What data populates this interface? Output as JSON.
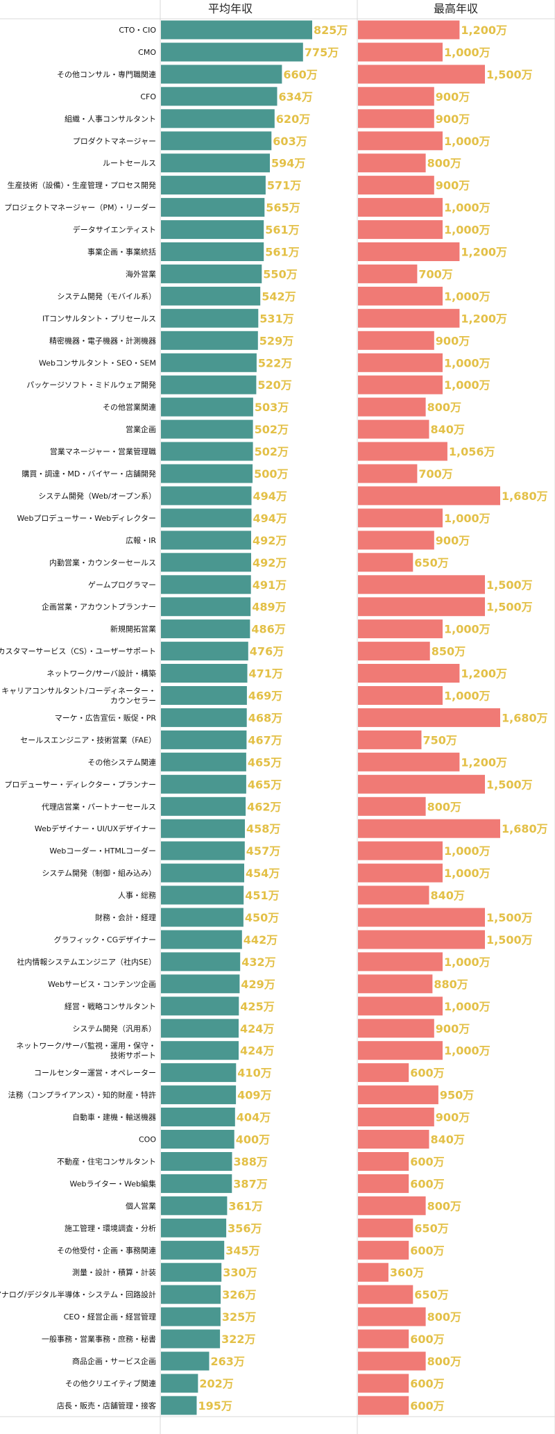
{
  "chart_data": {
    "type": "bar",
    "orientation": "horizontal",
    "unit": "万",
    "colors": {
      "average": "#4a9790",
      "max": "#f07a75",
      "value_label": "#e3c047",
      "grid": "#d9d9d9"
    },
    "series": [
      {
        "name": "平均年収",
        "values": [
          825,
          775,
          660,
          634,
          620,
          603,
          594,
          571,
          565,
          561,
          561,
          550,
          542,
          531,
          529,
          522,
          520,
          503,
          502,
          502,
          500,
          494,
          494,
          492,
          492,
          491,
          489,
          486,
          476,
          471,
          469,
          468,
          467,
          465,
          465,
          462,
          458,
          457,
          454,
          451,
          450,
          442,
          432,
          429,
          425,
          424,
          424,
          410,
          409,
          404,
          400,
          388,
          387,
          361,
          356,
          345,
          330,
          326,
          325,
          322,
          263,
          202,
          195
        ]
      },
      {
        "name": "最高年収",
        "values": [
          1200,
          1000,
          1500,
          900,
          900,
          1000,
          800,
          900,
          1000,
          1000,
          1200,
          700,
          1000,
          1200,
          900,
          1000,
          1000,
          800,
          840,
          1056,
          700,
          1680,
          1000,
          900,
          650,
          1500,
          1500,
          1000,
          850,
          1200,
          1000,
          1680,
          750,
          1200,
          1500,
          800,
          1680,
          1000,
          1000,
          840,
          1500,
          1500,
          1000,
          880,
          1000,
          900,
          1000,
          600,
          950,
          900,
          840,
          600,
          600,
          800,
          650,
          600,
          360,
          650,
          800,
          600,
          800,
          600,
          600
        ]
      }
    ],
    "value_labels": {
      "average": [
        "825万",
        "775万",
        "660万",
        "634万",
        "620万",
        "603万",
        "594万",
        "571万",
        "565万",
        "561万",
        "561万",
        "550万",
        "542万",
        "531万",
        "529万",
        "522万",
        "520万",
        "503万",
        "502万",
        "502万",
        "500万",
        "494万",
        "494万",
        "492万",
        "492万",
        "491万",
        "489万",
        "486万",
        "476万",
        "471万",
        "469万",
        "468万",
        "467万",
        "465万",
        "465万",
        "462万",
        "458万",
        "457万",
        "454万",
        "451万",
        "450万",
        "442万",
        "432万",
        "429万",
        "425万",
        "424万",
        "424万",
        "410万",
        "409万",
        "404万",
        "400万",
        "388万",
        "387万",
        "361万",
        "356万",
        "345万",
        "330万",
        "326万",
        "325万",
        "322万",
        "263万",
        "202万",
        "195万"
      ],
      "max": [
        "1,200万",
        "1,000万",
        "1,500万",
        "900万",
        "900万",
        "1,000万",
        "800万",
        "900万",
        "1,000万",
        "1,000万",
        "1,200万",
        "700万",
        "1,000万",
        "1,200万",
        "900万",
        "1,000万",
        "1,000万",
        "800万",
        "840万",
        "1,056万",
        "700万",
        "1,680万",
        "1,000万",
        "900万",
        "650万",
        "1,500万",
        "1,500万",
        "1,000万",
        "850万",
        "1,200万",
        "1,000万",
        "1,680万",
        "750万",
        "1,200万",
        "1,500万",
        "800万",
        "1,680万",
        "1,000万",
        "1,000万",
        "840万",
        "1,500万",
        "1,500万",
        "1,000万",
        "880万",
        "1,000万",
        "900万",
        "1,000万",
        "600万",
        "950万",
        "900万",
        "840万",
        "600万",
        "600万",
        "800万",
        "650万",
        "600万",
        "360万",
        "650万",
        "800万",
        "600万",
        "800万",
        "600万",
        "600万"
      ]
    },
    "categories": [
      [
        "CTO・CIO"
      ],
      [
        "CMO"
      ],
      [
        "その他コンサル・専門職関連"
      ],
      [
        "CFO"
      ],
      [
        "組織・人事コンサルタント"
      ],
      [
        "プロダクトマネージャー"
      ],
      [
        "ルートセールス"
      ],
      [
        "生産技術（設備）・生産管理・プロセス開発"
      ],
      [
        "プロジェクトマネージャー（PM）・リーダー"
      ],
      [
        "データサイエンティスト"
      ],
      [
        "事業企画・事業統括"
      ],
      [
        "海外営業"
      ],
      [
        "システム開発（モバイル系）"
      ],
      [
        "ITコンサルタント・プリセールス"
      ],
      [
        "精密機器・電子機器・計測機器"
      ],
      [
        "Webコンサルタント・SEO・SEM"
      ],
      [
        "パッケージソフト・ミドルウェア開発"
      ],
      [
        "その他営業関連"
      ],
      [
        "営業企画"
      ],
      [
        "営業マネージャー・営業管理職"
      ],
      [
        "購買・調達・MD・バイヤー・店舗開発"
      ],
      [
        "システム開発（Web/オープン系）"
      ],
      [
        "Webプロデューサー・Webディレクター"
      ],
      [
        "広報・IR"
      ],
      [
        "内勤営業・カウンターセールス"
      ],
      [
        "ゲームプログラマー"
      ],
      [
        "企画営業・アカウントプランナー"
      ],
      [
        "新規開拓営業"
      ],
      [
        "カスタマーサービス（CS）・ユーザーサポート"
      ],
      [
        "ネットワーク/サーバ設計・構築"
      ],
      [
        "キャリアコンサルタント/コーディネーター・",
        "カウンセラー"
      ],
      [
        "マーケ・広告宣伝・販促・PR"
      ],
      [
        "セールスエンジニア・技術営業（FAE）"
      ],
      [
        "その他システム関連"
      ],
      [
        "プロデューサー・ディレクター・プランナー"
      ],
      [
        "代理店営業・パートナーセールス"
      ],
      [
        "Webデザイナー・UI/UXデザイナー"
      ],
      [
        "Webコーダー・HTMLコーダー"
      ],
      [
        "システム開発（制御・組み込み）"
      ],
      [
        "人事・総務"
      ],
      [
        "財務・会計・経理"
      ],
      [
        "グラフィック・CGデザイナー"
      ],
      [
        "社内情報システムエンジニア（社内SE）"
      ],
      [
        "Webサービス・コンテンツ企画"
      ],
      [
        "経営・戦略コンサルタント"
      ],
      [
        "システム開発（汎用系）"
      ],
      [
        "ネットワーク/サーバ監視・運用・保守・",
        "技術サポート"
      ],
      [
        "コールセンター運営・オペレーター"
      ],
      [
        "法務（コンプライアンス）・知的財産・特許"
      ],
      [
        "自動車・建機・輸送機器"
      ],
      [
        "COO"
      ],
      [
        "不動産・住宅コンサルタント"
      ],
      [
        "Webライター・Web編集"
      ],
      [
        "個人営業"
      ],
      [
        "施工管理・環境調査・分析"
      ],
      [
        "その他受付・企画・事務関連"
      ],
      [
        "測量・設計・積算・計装"
      ],
      [
        "アナログ/デジタル半導体・システム・回路設計"
      ],
      [
        "CEO・経営企画・経営管理"
      ],
      [
        "一般事務・営業事務・庶務・秘書"
      ],
      [
        "商品企画・サービス企画"
      ],
      [
        "その他クリエイティブ関連"
      ],
      [
        "店長・販売・店舗管理・接客"
      ]
    ]
  }
}
